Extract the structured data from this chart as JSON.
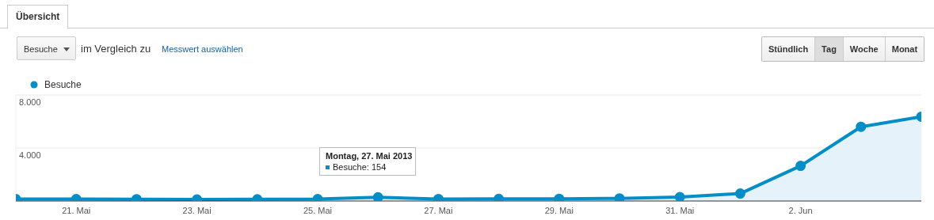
{
  "chart_data": {
    "type": "area",
    "x": [
      "2013-05-20",
      "2013-05-21",
      "2013-05-22",
      "2013-05-23",
      "2013-05-24",
      "2013-05-25",
      "2013-05-26",
      "2013-05-27",
      "2013-05-28",
      "2013-05-29",
      "2013-05-30",
      "2013-05-31",
      "2013-06-01",
      "2013-06-02",
      "2013-06-03",
      "2013-06-04"
    ],
    "series": [
      {
        "name": "Besuche",
        "color": "#058dc7",
        "values": [
          150,
          150,
          140,
          120,
          130,
          150,
          280,
          154,
          160,
          170,
          200,
          300,
          560,
          2650,
          5600,
          6360
        ]
      }
    ],
    "xlim": [
      "2013-05-20",
      "2013-06-04"
    ],
    "xticks": [
      {
        "value": "2013-05-21",
        "label": "21. Mai"
      },
      {
        "value": "2013-05-23",
        "label": "23. Mai"
      },
      {
        "value": "2013-05-25",
        "label": "25. Mai"
      },
      {
        "value": "2013-05-27",
        "label": "27. Mai"
      },
      {
        "value": "2013-05-29",
        "label": "29. Mai"
      },
      {
        "value": "2013-05-31",
        "label": "31. Mai"
      },
      {
        "value": "2013-06-02",
        "label": "2. Jun"
      }
    ],
    "ylim": [
      0,
      8000
    ],
    "yticks": [
      {
        "value": 4000,
        "label": "4.000"
      },
      {
        "value": 8000,
        "label": "8.000"
      }
    ],
    "grid": "y",
    "legend": "top left",
    "marker": "circle",
    "annotations": [
      "Übersicht",
      "Besuche",
      "im Vergleich zu",
      "Messwert auswählen",
      "Stündlich",
      "Tag",
      "Woche",
      "Monat",
      "Montag, 27. Mai 2013\nBesuche: 154"
    ]
  }
}
